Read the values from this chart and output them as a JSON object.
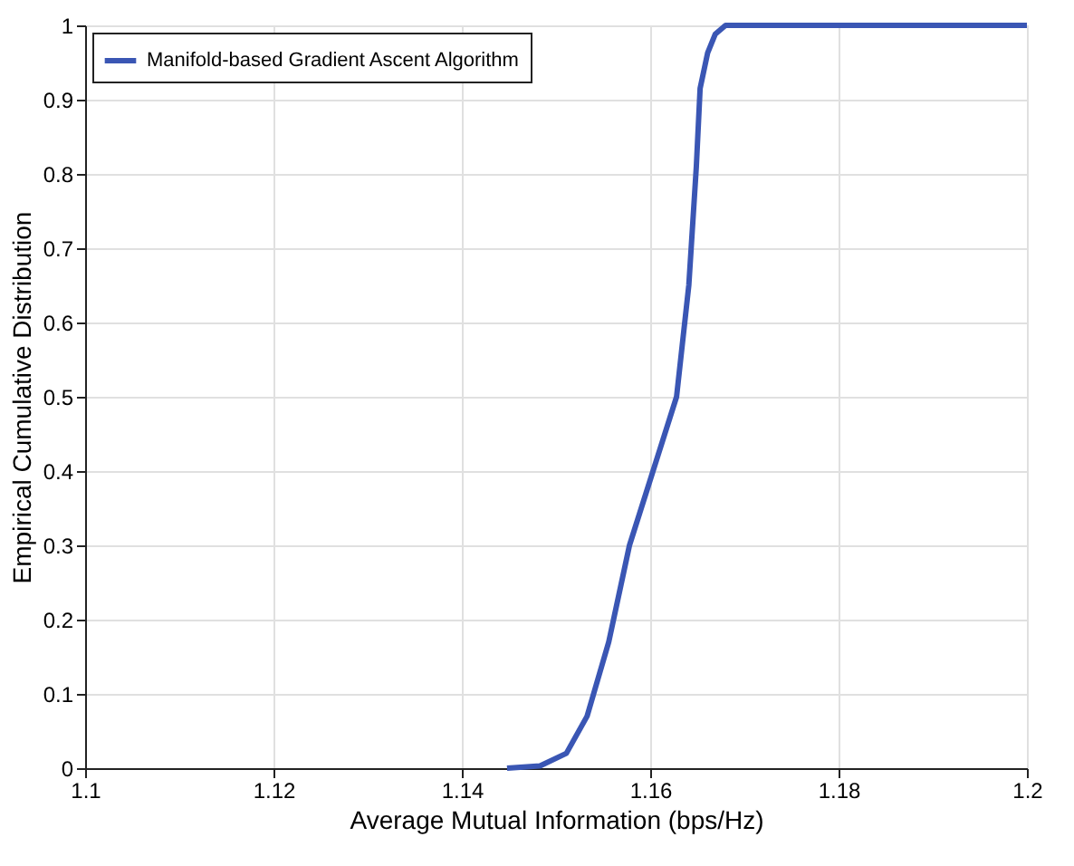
{
  "chart_data": {
    "type": "line",
    "xlabel": "Average Mutual Information (bps/Hz)",
    "ylabel": "Empirical Cumulative Distribution",
    "x": [
      1.1448,
      1.1483,
      1.1511,
      1.1533,
      1.1556,
      1.1578,
      1.1603,
      1.1628,
      1.1641,
      1.1649,
      1.1653,
      1.1661,
      1.1669,
      1.168,
      1.2
    ],
    "series": [
      {
        "name": "Manifold-based Gradient Ascent Algorithm",
        "color": "#3a56b4",
        "values": [
          0,
          0.003,
          0.02,
          0.07,
          0.17,
          0.3,
          0.4,
          0.5,
          0.65,
          0.81,
          0.915,
          0.963,
          0.988,
          1,
          1
        ]
      }
    ],
    "xlim": [
      1.1,
      1.2
    ],
    "xticks": [
      1.1,
      1.12,
      1.14,
      1.16,
      1.18,
      1.2
    ],
    "ylim": [
      0,
      1
    ],
    "yticks": [
      0,
      0.1,
      0.2,
      0.3,
      0.4,
      0.5,
      0.6,
      0.7,
      0.8,
      0.9,
      1
    ],
    "grid": true,
    "legend": "top left",
    "marker": "none",
    "line_style": "solid"
  }
}
